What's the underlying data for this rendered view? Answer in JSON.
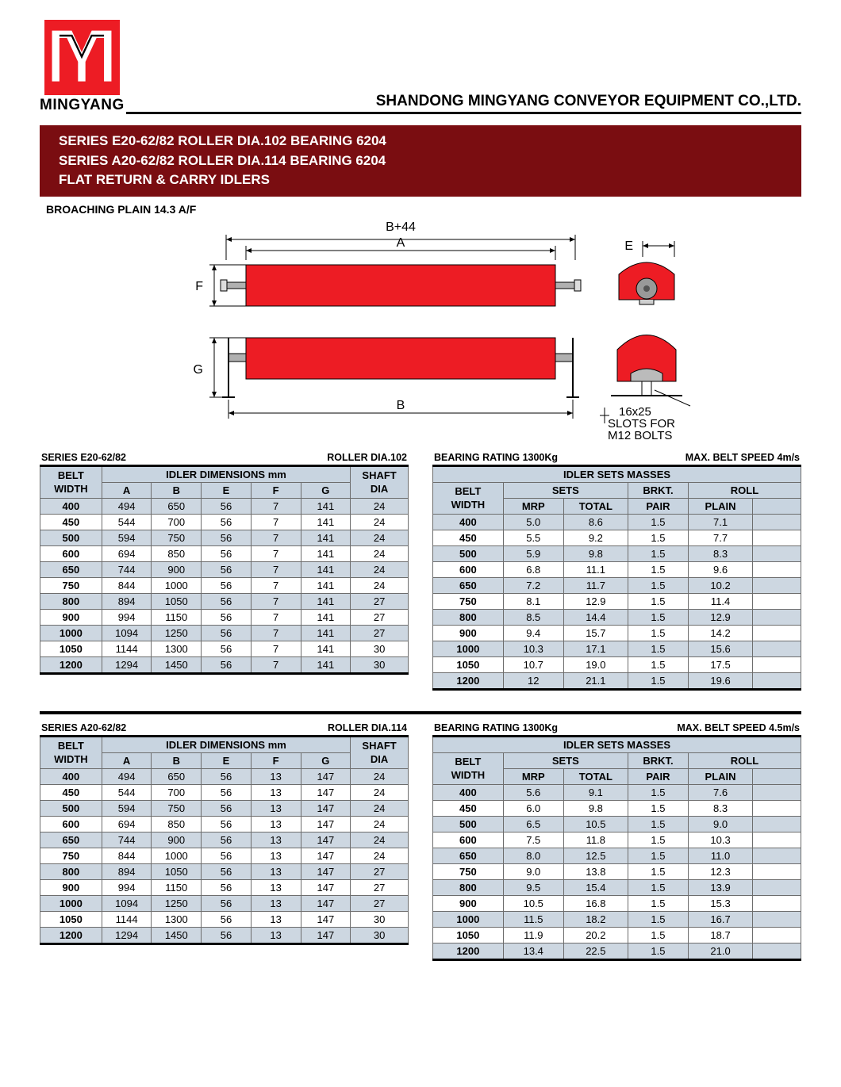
{
  "brand": "MINGYANG",
  "company": "SHANDONG MINGYANG CONVEYOR EQUIPMENT CO.,LTD.",
  "logo": {
    "bg": "#ed1c24",
    "stroke": "#ffffff"
  },
  "title_lines": [
    "SERIES E20-62/82 ROLLER DIA.102 BEARING 6204",
    "SERIES A20-62/82 ROLLER DIA.114 BEARING 6204",
    "FLAT RETURN & CARRY IDLERS"
  ],
  "title_bg": "#7a0d11",
  "subheading": "BROACHING PLAIN 14.3 A/F",
  "diagram": {
    "labels": {
      "top1": "B+44",
      "top2": "A",
      "left1": "F",
      "left2": "G",
      "bottom": "B",
      "side_top": "E",
      "slot": "16x25\nSLOTS FOR\nM12  BOLTS"
    },
    "roller_color": "#ed1c24",
    "shaft_color": "#b0b0b0"
  },
  "dim_headers": {
    "belt_width": "BELT\nWIDTH",
    "idler_dims": "IDLER DIMENSIONS mm",
    "cols": [
      "A",
      "B",
      "E",
      "F",
      "G"
    ],
    "shaft_dia": "SHAFT\nDIA"
  },
  "mass_headers": {
    "top": "IDLER SETS MASSES",
    "belt_width": "BELT\nWIDTH",
    "sets": "SETS",
    "mrp": "MRP",
    "total": "TOTAL",
    "brkt": "BRKT.",
    "pair": "PAIR",
    "roll": "ROLL",
    "plain": "PLAIN"
  },
  "section1": {
    "dim_caption_left": "SERIES E20-62/82",
    "dim_caption_right": "ROLLER DIA.102",
    "mass_caption_left": "BEARING RATING 1300Kg",
    "mass_caption_right": "MAX. BELT SPEED 4m/s",
    "dims": [
      [
        "400",
        "494",
        "650",
        "56",
        "7",
        "141",
        "24"
      ],
      [
        "450",
        "544",
        "700",
        "56",
        "7",
        "141",
        "24"
      ],
      [
        "500",
        "594",
        "750",
        "56",
        "7",
        "141",
        "24"
      ],
      [
        "600",
        "694",
        "850",
        "56",
        "7",
        "141",
        "24"
      ],
      [
        "650",
        "744",
        "900",
        "56",
        "7",
        "141",
        "24"
      ],
      [
        "750",
        "844",
        "1000",
        "56",
        "7",
        "141",
        "24"
      ],
      [
        "800",
        "894",
        "1050",
        "56",
        "7",
        "141",
        "27"
      ],
      [
        "900",
        "994",
        "1150",
        "56",
        "7",
        "141",
        "27"
      ],
      [
        "1000",
        "1094",
        "1250",
        "56",
        "7",
        "141",
        "27"
      ],
      [
        "1050",
        "1144",
        "1300",
        "56",
        "7",
        "141",
        "30"
      ],
      [
        "1200",
        "1294",
        "1450",
        "56",
        "7",
        "141",
        "30"
      ]
    ],
    "masses": [
      [
        "400",
        "5.0",
        "8.6",
        "1.5",
        "7.1"
      ],
      [
        "450",
        "5.5",
        "9.2",
        "1.5",
        "7.7"
      ],
      [
        "500",
        "5.9",
        "9.8",
        "1.5",
        "8.3"
      ],
      [
        "600",
        "6.8",
        "11.1",
        "1.5",
        "9.6"
      ],
      [
        "650",
        "7.2",
        "11.7",
        "1.5",
        "10.2"
      ],
      [
        "750",
        "8.1",
        "12.9",
        "1.5",
        "11.4"
      ],
      [
        "800",
        "8.5",
        "14.4",
        "1.5",
        "12.9"
      ],
      [
        "900",
        "9.4",
        "15.7",
        "1.5",
        "14.2"
      ],
      [
        "1000",
        "10.3",
        "17.1",
        "1.5",
        "15.6"
      ],
      [
        "1050",
        "10.7",
        "19.0",
        "1.5",
        "17.5"
      ],
      [
        "1200",
        "12",
        "21.1",
        "1.5",
        "19.6"
      ]
    ]
  },
  "section2": {
    "dim_caption_left": "SERIES A20-62/82",
    "dim_caption_right": "ROLLER DIA.114",
    "mass_caption_left": "BEARING RATING 1300Kg",
    "mass_caption_right": "MAX. BELT SPEED 4.5m/s",
    "dims": [
      [
        "400",
        "494",
        "650",
        "56",
        "13",
        "147",
        "24"
      ],
      [
        "450",
        "544",
        "700",
        "56",
        "13",
        "147",
        "24"
      ],
      [
        "500",
        "594",
        "750",
        "56",
        "13",
        "147",
        "24"
      ],
      [
        "600",
        "694",
        "850",
        "56",
        "13",
        "147",
        "24"
      ],
      [
        "650",
        "744",
        "900",
        "56",
        "13",
        "147",
        "24"
      ],
      [
        "750",
        "844",
        "1000",
        "56",
        "13",
        "147",
        "24"
      ],
      [
        "800",
        "894",
        "1050",
        "56",
        "13",
        "147",
        "27"
      ],
      [
        "900",
        "994",
        "1150",
        "56",
        "13",
        "147",
        "27"
      ],
      [
        "1000",
        "1094",
        "1250",
        "56",
        "13",
        "147",
        "27"
      ],
      [
        "1050",
        "1144",
        "1300",
        "56",
        "13",
        "147",
        "30"
      ],
      [
        "1200",
        "1294",
        "1450",
        "56",
        "13",
        "147",
        "30"
      ]
    ],
    "masses": [
      [
        "400",
        "5.6",
        "9.1",
        "1.5",
        "7.6"
      ],
      [
        "450",
        "6.0",
        "9.8",
        "1.5",
        "8.3"
      ],
      [
        "500",
        "6.5",
        "10.5",
        "1.5",
        "9.0"
      ],
      [
        "600",
        "7.5",
        "11.8",
        "1.5",
        "10.3"
      ],
      [
        "650",
        "8.0",
        "12.5",
        "1.5",
        "11.0"
      ],
      [
        "750",
        "9.0",
        "13.8",
        "1.5",
        "12.3"
      ],
      [
        "800",
        "9.5",
        "15.4",
        "1.5",
        "13.9"
      ],
      [
        "900",
        "10.5",
        "16.8",
        "1.5",
        "15.3"
      ],
      [
        "1000",
        "11.5",
        "18.2",
        "1.5",
        "16.7"
      ],
      [
        "1050",
        "11.9",
        "20.2",
        "1.5",
        "18.7"
      ],
      [
        "1200",
        "13.4",
        "22.5",
        "1.5",
        "21.0"
      ]
    ]
  },
  "colors": {
    "header_row_bg": "#c8d4e0",
    "row_alt_bg": "#cdd7e1",
    "border": "#6d6d6d"
  }
}
